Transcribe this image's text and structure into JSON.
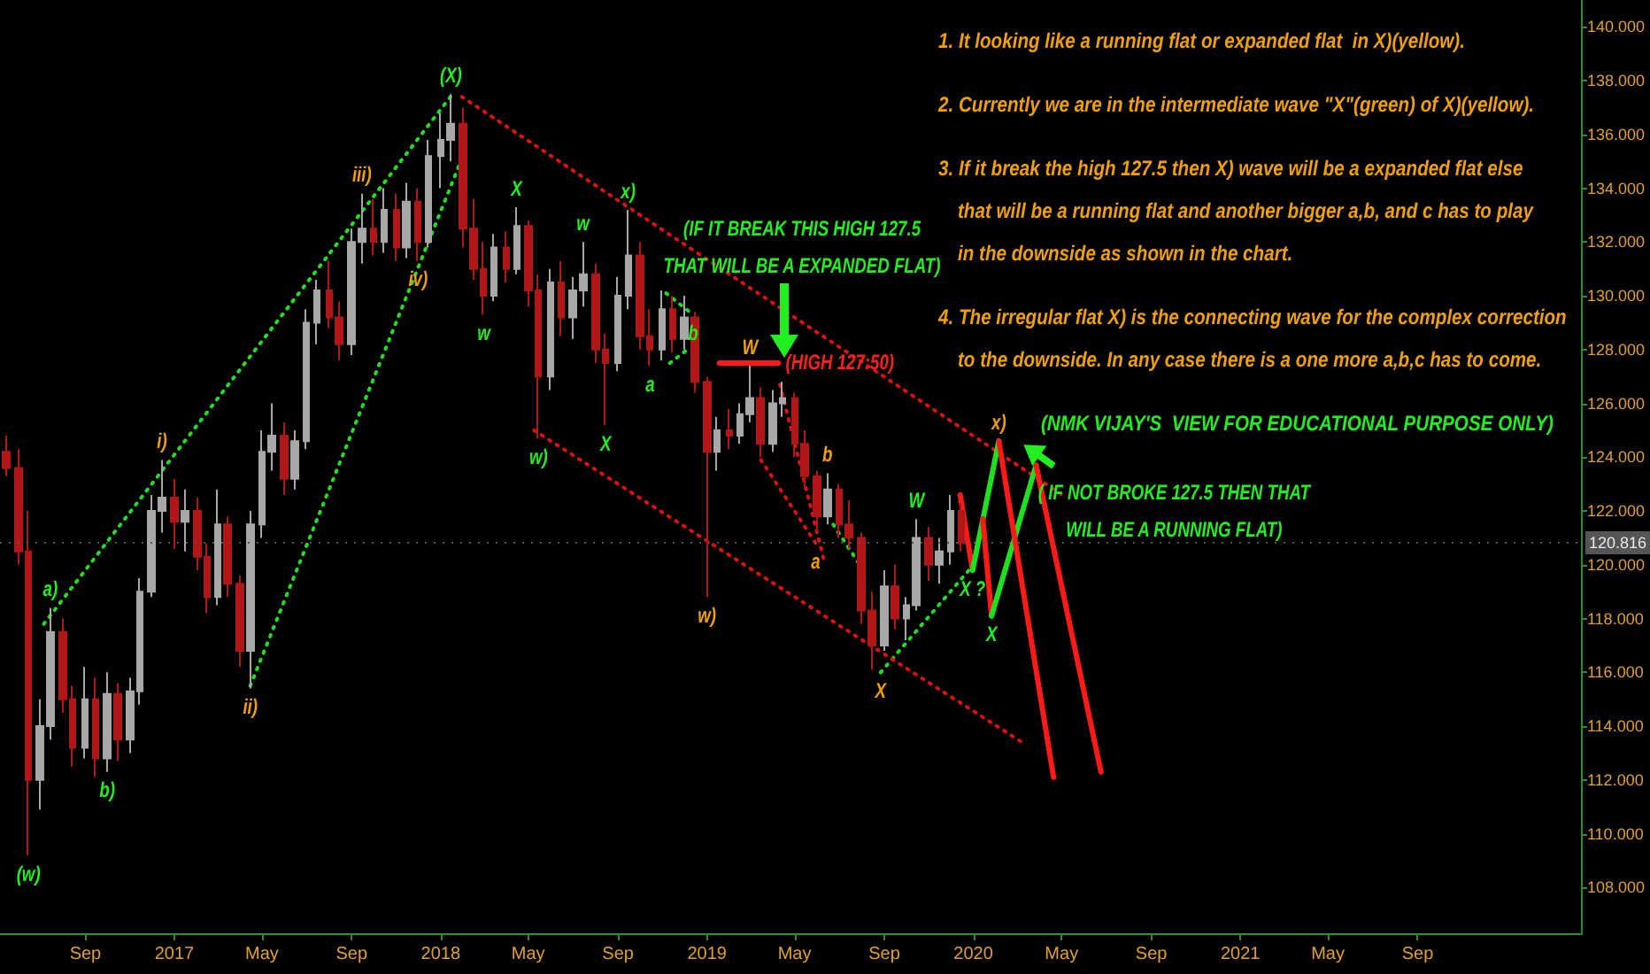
{
  "chart_data": {
    "type": "candlestick",
    "x": [
      "2016-05-15",
      "2016-06-01",
      "2016-06-15",
      "2016-07-01",
      "2016-07-15",
      "2016-08-01",
      "2016-08-15",
      "2016-09-01",
      "2016-09-15",
      "2016-10-01",
      "2016-10-15",
      "2016-11-01",
      "2016-11-15",
      "2016-12-01",
      "2016-12-15",
      "2017-01-01",
      "2017-01-15",
      "2017-02-01",
      "2017-02-15",
      "2017-03-01",
      "2017-03-15",
      "2017-04-01",
      "2017-04-15",
      "2017-05-01",
      "2017-05-15",
      "2017-06-01",
      "2017-06-15",
      "2017-07-01",
      "2017-07-15",
      "2017-08-01",
      "2017-08-15",
      "2017-09-01",
      "2017-09-15",
      "2017-10-01",
      "2017-10-15",
      "2017-11-01",
      "2017-11-15",
      "2017-12-01",
      "2017-12-15",
      "2018-01-01",
      "2018-01-15",
      "2018-02-01",
      "2018-02-15",
      "2018-03-01",
      "2018-03-15",
      "2018-04-01",
      "2018-04-15",
      "2018-05-01",
      "2018-05-15",
      "2018-06-01",
      "2018-06-15",
      "2018-07-01",
      "2018-07-15",
      "2018-08-01",
      "2018-08-15",
      "2018-09-01",
      "2018-09-15",
      "2018-10-01",
      "2018-10-15",
      "2018-11-01",
      "2018-11-15",
      "2018-12-01",
      "2018-12-15",
      "2019-01-01",
      "2019-01-15",
      "2019-02-01",
      "2019-02-15",
      "2019-03-01",
      "2019-03-15",
      "2019-04-01",
      "2019-04-15",
      "2019-05-01",
      "2019-05-15",
      "2019-06-01",
      "2019-06-15",
      "2019-07-01",
      "2019-07-15",
      "2019-08-01",
      "2019-08-15",
      "2019-09-01",
      "2019-09-15",
      "2019-10-01",
      "2019-10-15",
      "2019-11-01",
      "2019-11-15",
      "2019-12-01",
      "2019-12-15"
    ],
    "ohlc": [
      [
        124.2,
        124.8,
        123.3,
        123.6
      ],
      [
        123.6,
        124.3,
        120.0,
        120.5
      ],
      [
        120.5,
        122.0,
        109.2,
        112.0
      ],
      [
        112.0,
        115.0,
        110.9,
        114.0
      ],
      [
        114.0,
        118.4,
        113.5,
        117.5
      ],
      [
        117.5,
        118.0,
        114.5,
        115.0
      ],
      [
        115.0,
        115.5,
        112.5,
        113.2
      ],
      [
        113.2,
        116.2,
        112.8,
        115.0
      ],
      [
        115.0,
        115.8,
        112.1,
        112.8
      ],
      [
        112.8,
        116.0,
        112.3,
        115.2
      ],
      [
        115.2,
        115.6,
        112.7,
        113.5
      ],
      [
        113.5,
        115.8,
        113.0,
        115.3
      ],
      [
        115.3,
        119.5,
        114.8,
        119.0
      ],
      [
        119.0,
        122.6,
        118.8,
        122.0
      ],
      [
        122.0,
        123.9,
        121.2,
        122.5
      ],
      [
        122.5,
        123.2,
        120.6,
        121.6
      ],
      [
        121.6,
        122.8,
        120.5,
        122.0
      ],
      [
        122.0,
        122.5,
        119.8,
        120.3
      ],
      [
        120.3,
        120.8,
        118.2,
        118.8
      ],
      [
        118.8,
        122.8,
        118.5,
        121.5
      ],
      [
        121.5,
        121.8,
        118.8,
        119.3
      ],
      [
        119.3,
        119.6,
        116.2,
        116.8
      ],
      [
        116.8,
        122.0,
        115.4,
        121.5
      ],
      [
        121.5,
        125.0,
        121.0,
        124.2
      ],
      [
        124.2,
        126.0,
        123.5,
        124.8
      ],
      [
        124.8,
        125.3,
        122.6,
        123.2
      ],
      [
        123.2,
        125.0,
        122.8,
        124.6
      ],
      [
        124.6,
        129.5,
        124.3,
        129.0
      ],
      [
        129.0,
        130.6,
        128.2,
        130.2
      ],
      [
        130.2,
        131.3,
        128.8,
        129.2
      ],
      [
        129.2,
        129.8,
        127.6,
        128.2
      ],
      [
        128.2,
        132.5,
        127.8,
        132.0
      ],
      [
        132.0,
        133.8,
        131.2,
        132.5
      ],
      [
        132.5,
        133.6,
        131.5,
        132.0
      ],
      [
        132.0,
        134.0,
        131.6,
        133.2
      ],
      [
        133.2,
        133.8,
        131.3,
        131.8
      ],
      [
        131.8,
        134.2,
        131.4,
        133.5
      ],
      [
        133.5,
        134.0,
        131.3,
        132.0
      ],
      [
        132.0,
        135.8,
        131.8,
        135.2
      ],
      [
        135.2,
        136.8,
        134.0,
        135.8
      ],
      [
        135.8,
        137.5,
        135.0,
        136.4
      ],
      [
        136.4,
        137.0,
        131.8,
        132.5
      ],
      [
        132.5,
        133.6,
        130.6,
        131.0
      ],
      [
        131.0,
        132.0,
        129.3,
        130.0
      ],
      [
        130.0,
        132.3,
        129.8,
        131.8
      ],
      [
        131.8,
        132.4,
        130.5,
        131.0
      ],
      [
        131.0,
        133.3,
        130.8,
        132.6
      ],
      [
        132.6,
        132.8,
        129.6,
        130.2
      ],
      [
        130.2,
        130.8,
        124.7,
        127.0
      ],
      [
        127.0,
        131.0,
        126.5,
        130.5
      ],
      [
        130.5,
        131.3,
        128.5,
        129.2
      ],
      [
        129.2,
        130.7,
        128.4,
        130.2
      ],
      [
        130.2,
        132.0,
        129.6,
        130.8
      ],
      [
        130.8,
        131.2,
        127.5,
        128.0
      ],
      [
        128.0,
        128.6,
        125.2,
        127.5
      ],
      [
        127.5,
        130.7,
        127.2,
        130.0
      ],
      [
        130.0,
        133.2,
        129.5,
        131.5
      ],
      [
        131.5,
        132.0,
        128.0,
        128.5
      ],
      [
        128.5,
        129.5,
        127.4,
        128.0
      ],
      [
        128.0,
        130.2,
        127.6,
        129.5
      ],
      [
        129.5,
        130.0,
        127.9,
        128.4
      ],
      [
        128.4,
        130.0,
        128.0,
        129.2
      ],
      [
        129.2,
        129.4,
        126.4,
        126.8
      ],
      [
        126.8,
        127.0,
        118.8,
        124.2
      ],
      [
        124.2,
        125.5,
        123.5,
        125.0
      ],
      [
        125.0,
        125.8,
        124.3,
        124.8
      ],
      [
        124.8,
        126.0,
        124.5,
        125.6
      ],
      [
        125.6,
        127.4,
        125.3,
        126.2
      ],
      [
        126.2,
        126.6,
        124.0,
        124.5
      ],
      [
        124.5,
        126.5,
        124.2,
        126.0
      ],
      [
        126.0,
        126.8,
        125.5,
        126.2
      ],
      [
        126.2,
        126.4,
        124.0,
        124.5
      ],
      [
        124.5,
        125.0,
        122.8,
        123.3
      ],
      [
        123.3,
        123.5,
        121.2,
        121.8
      ],
      [
        121.8,
        123.4,
        121.5,
        122.8
      ],
      [
        122.8,
        123.0,
        121.0,
        121.5
      ],
      [
        121.5,
        122.4,
        120.6,
        121.0
      ],
      [
        121.0,
        121.2,
        117.8,
        118.3
      ],
      [
        118.3,
        119.0,
        116.1,
        117.0
      ],
      [
        117.0,
        119.8,
        116.8,
        119.2
      ],
      [
        119.2,
        120.0,
        117.6,
        118.0
      ],
      [
        118.0,
        118.8,
        117.2,
        118.5
      ],
      [
        118.5,
        121.7,
        118.3,
        121.0
      ],
      [
        121.0,
        121.4,
        119.4,
        120.0
      ],
      [
        120.0,
        121.0,
        119.3,
        120.5
      ],
      [
        120.5,
        122.6,
        120.0,
        122.0
      ],
      [
        122.0,
        122.3,
        120.5,
        120.8
      ]
    ],
    "series": [
      {
        "type": "line",
        "x": [
          "2016-07-06",
          "2018-01-20"
        ],
        "values": [
          117.8,
          137.6
        ],
        "color": "#22dd22",
        "line_style": "dotted"
      },
      {
        "type": "line",
        "x": [
          "2017-04-15",
          "2018-01-30"
        ],
        "values": [
          115.5,
          135.1
        ],
        "color": "#22dd22",
        "line_style": "dotted"
      },
      {
        "type": "line",
        "x": [
          "2018-11-06",
          "2018-12-13"
        ],
        "values": [
          130.1,
          129.3
        ],
        "color": "#22dd22",
        "line_style": "dotted"
      },
      {
        "type": "line",
        "x": [
          "2018-11-11",
          "2018-12-05"
        ],
        "values": [
          127.5,
          128.0
        ],
        "color": "#22dd22",
        "line_style": "dotted"
      },
      {
        "type": "line",
        "x": [
          "2019-06-23",
          "2019-07-27"
        ],
        "values": [
          121.5,
          120.1
        ],
        "color": "#22dd22",
        "line_style": "dotted"
      },
      {
        "type": "line",
        "x": [
          "2019-08-27",
          "2019-12-26"
        ],
        "values": [
          116.0,
          119.8
        ],
        "color": "#22dd22",
        "line_style": "dotted"
      },
      {
        "type": "line",
        "x": [
          "2018-01-30",
          "2020-05-02"
        ],
        "values": [
          137.4,
          122.6
        ],
        "color": "#e01010",
        "line_style": "dotted"
      },
      {
        "type": "line",
        "x": [
          "2018-05-09",
          "2020-03-08"
        ],
        "values": [
          125.0,
          113.4
        ],
        "color": "#e01010",
        "line_style": "dotted"
      },
      {
        "type": "line",
        "x": [
          "2019-04-11",
          "2019-06-11"
        ],
        "values": [
          126.7,
          120.1
        ],
        "color": "#e01010",
        "line_style": "dotted"
      },
      {
        "type": "line",
        "x": [
          "2019-03-16",
          "2019-05-30"
        ],
        "values": [
          123.9,
          120.8
        ],
        "color": "#e01010",
        "line_style": "dotted"
      },
      {
        "type": "line",
        "x": [
          "2019-01-18",
          "2019-04-09"
        ],
        "values": [
          127.5,
          127.5
        ],
        "color": "#ff1a1a",
        "line_style": "solid"
      },
      {
        "type": "line",
        "x": [
          "2019-12-14",
          "2019-12-31"
        ],
        "values": [
          122.6,
          119.8
        ],
        "color": "#ff1a1a",
        "line_style": "solid"
      },
      {
        "type": "line",
        "x": [
          "2019-12-31",
          "2020-02-05"
        ],
        "values": [
          119.8,
          124.6
        ],
        "color": "#1ee01e",
        "line_style": "solid"
      },
      {
        "type": "line",
        "x": [
          "2020-01-14",
          "2020-01-26"
        ],
        "values": [
          121.7,
          118.1
        ],
        "color": "#ff1a1a",
        "line_style": "solid"
      },
      {
        "type": "line",
        "x": [
          "2020-01-26",
          "2020-03-27"
        ],
        "values": [
          118.1,
          123.7
        ],
        "color": "#1ee01e",
        "line_style": "solid"
      },
      {
        "type": "line",
        "x": [
          "2020-02-05",
          "2020-04-20"
        ],
        "values": [
          124.6,
          112.1
        ],
        "color": "#ff1a1a",
        "line_style": "solid"
      },
      {
        "type": "line",
        "x": [
          "2020-03-27",
          "2020-06-24"
        ],
        "values": [
          123.7,
          112.3
        ],
        "color": "#ff1a1a",
        "line_style": "solid"
      }
    ],
    "xlim": [
      "2016-05-07",
      "2022-04-14"
    ],
    "xticks": [
      {
        "value": "2016-09-01",
        "label": "Sep"
      },
      {
        "value": "2017-01-01",
        "label": "2017"
      },
      {
        "value": "2017-05-01",
        "label": "May"
      },
      {
        "value": "2017-09-01",
        "label": "Sep"
      },
      {
        "value": "2018-01-01",
        "label": "2018"
      },
      {
        "value": "2018-05-01",
        "label": "May"
      },
      {
        "value": "2018-09-01",
        "label": "Sep"
      },
      {
        "value": "2019-01-01",
        "label": "2019"
      },
      {
        "value": "2019-05-01",
        "label": "May"
      },
      {
        "value": "2019-09-01",
        "label": "Sep"
      },
      {
        "value": "2020-01-01",
        "label": "2020"
      },
      {
        "value": "2020-05-01",
        "label": "May"
      },
      {
        "value": "2020-09-01",
        "label": "Sep"
      },
      {
        "value": "2021-01-01",
        "label": "2021"
      },
      {
        "value": "2021-05-01",
        "label": "May"
      },
      {
        "value": "2021-09-01",
        "label": "Sep"
      }
    ],
    "ylim": [
      106.3,
      141.0
    ],
    "yticks": [
      {
        "value": 108,
        "label": "108.000"
      },
      {
        "value": 110,
        "label": "110.000"
      },
      {
        "value": 112,
        "label": "112.000"
      },
      {
        "value": 114,
        "label": "114.000"
      },
      {
        "value": 116,
        "label": "116.000"
      },
      {
        "value": 118,
        "label": "118.000"
      },
      {
        "value": 120,
        "label": "120.000"
      },
      {
        "value": 122,
        "label": "122.000"
      },
      {
        "value": 124,
        "label": "124.000"
      },
      {
        "value": 126,
        "label": "126.000"
      },
      {
        "value": 128,
        "label": "128.000"
      },
      {
        "value": 130,
        "label": "130.000"
      },
      {
        "value": 132,
        "label": "132.000"
      },
      {
        "value": 134,
        "label": "134.000"
      },
      {
        "value": 136,
        "label": "136.000"
      },
      {
        "value": 138,
        "label": "138.000"
      },
      {
        "value": 140,
        "label": "140.000"
      }
    ],
    "ref_lines": [
      {
        "axis": "y",
        "value": 120.816,
        "label": "120.816",
        "color": "#555555",
        "line_style": "dotted"
      }
    ],
    "annotations": [
      "1. It looking like a running flat or expanded flat  in X)(yellow).",
      "2. Currently we are in the intermediate wave \"X\"(green) of X)(yellow).",
      "3. If it break the high 127.5 then X) wave will be a expanded flat else\nthat will be a running flat and another bigger a,b, and c has to play\nin the downside as shown in the chart.",
      "4. The irregular flat X) is the connecting wave for the complex correction\nto the downside. In any case there is a one more a,b,c has to come.",
      "(NMK VIJAY'S  VIEW FOR EDUCATIONAL PURPOSE ONLY)",
      {
        "text": "(X)",
        "x": "2018-01-15",
        "y": 137.5
      },
      {
        "text": "iii)",
        "x": "2017-09-15",
        "y": 133.8
      },
      {
        "text": "iv)",
        "x": "2017-12-01",
        "y": 131.3
      },
      {
        "text": "i)",
        "x": "2016-12-15",
        "y": 123.9
      },
      {
        "text": "ii)",
        "x": "2017-04-15",
        "y": 115.4
      },
      {
        "text": "a)",
        "x": "2016-07-15",
        "y": 118.4
      },
      {
        "text": "b)",
        "x": "2016-10-01",
        "y": 112.3
      },
      {
        "text": "(w)",
        "x": "2016-06-15",
        "y": 109.2
      },
      {
        "text": "w",
        "x": "2018-03-01",
        "y": 129.3
      },
      {
        "text": "X",
        "x": "2018-04-15",
        "y": 133.3
      },
      {
        "text": "w)",
        "x": "2018-05-15",
        "y": 124.7
      },
      {
        "text": "w",
        "x": "2018-07-15",
        "y": 132.0
      },
      {
        "text": "X",
        "x": "2018-08-15",
        "y": 125.2
      },
      {
        "text": "x)",
        "x": "2018-09-15",
        "y": 133.2
      },
      {
        "text": "b",
        "x": "2018-12-13",
        "y": 129.3
      },
      {
        "text": "a",
        "x": "2018-10-15",
        "y": 127.4
      },
      {
        "text": "w)",
        "x": "2019-01-01",
        "y": 118.8
      },
      {
        "text": "W",
        "x": "2019-03-01",
        "y": 127.4
      },
      {
        "text": "(HIGH 127:50)",
        "x": "2019-04-09",
        "y": 127.5
      },
      {
        "text": "b",
        "x": "2019-06-15",
        "y": 123.4
      },
      {
        "text": "a",
        "x": "2019-05-30",
        "y": 120.8
      },
      {
        "text": "X",
        "x": "2019-08-27",
        "y": 116.0
      },
      {
        "text": "W",
        "x": "2019-10-15",
        "y": 121.7
      },
      {
        "text": "X ?",
        "x": "2019-12-31",
        "y": 119.8
      },
      {
        "text": "X",
        "x": "2020-01-26",
        "y": 118.1
      },
      {
        "text": "x)",
        "x": "2020-02-05",
        "y": 124.6
      },
      "(IF IT BREAK THIS HIGH 127.5\nTHAT WILL BE A EXPANDED FLAT)",
      {
        "text": "( IF NOT BROKE 127.5 THEN THAT\nWILL BE A RUNNING FLAT)",
        "x": "2020-02-05",
        "y": 124.6
      }
    ]
  }
}
